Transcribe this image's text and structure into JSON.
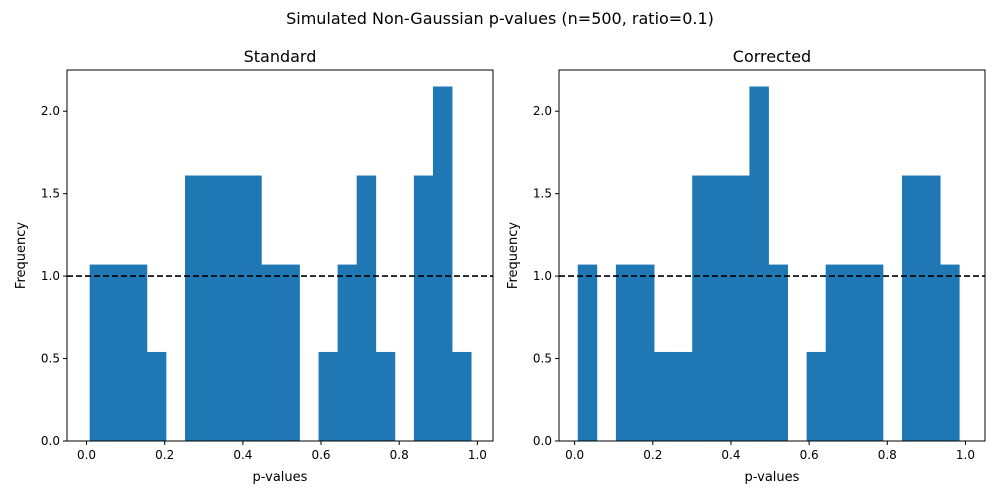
{
  "figure": {
    "suptitle": "Simulated Non-Gaussian p-values (n=500, ratio=0.1)"
  },
  "chart_data": [
    {
      "type": "bar",
      "title": "Standard",
      "xlabel": "p-values",
      "ylabel": "Frequency",
      "xlim": [
        -0.05,
        1.04
      ],
      "ylim": [
        0,
        2.25
      ],
      "xticks": [
        0.0,
        0.2,
        0.4,
        0.6,
        0.8,
        1.0
      ],
      "xtick_labels": [
        "0.0",
        "0.2",
        "0.4",
        "0.6",
        "0.8",
        "1.0"
      ],
      "yticks": [
        0.0,
        0.5,
        1.0,
        1.5,
        2.0
      ],
      "ytick_labels": [
        "0.0",
        "0.5",
        "1.0",
        "1.5",
        "2.0"
      ],
      "bin_start": 0.008,
      "bin_width": 0.0488,
      "values": [
        1.07,
        1.07,
        1.07,
        0.54,
        0,
        1.61,
        1.61,
        1.61,
        1.61,
        1.07,
        1.07,
        0,
        0.54,
        1.07,
        1.61,
        0.54,
        0,
        1.61,
        2.15,
        0.54
      ],
      "bar_color": "#1f77b4",
      "reference_line": {
        "y": 1.0,
        "style": "dashed",
        "color": "#000000"
      },
      "grid": false
    },
    {
      "type": "bar",
      "title": "Corrected",
      "xlabel": "p-values",
      "ylabel": "Frequency",
      "xlim": [
        -0.04,
        1.05
      ],
      "ylim": [
        0,
        2.25
      ],
      "xticks": [
        0.0,
        0.2,
        0.4,
        0.6,
        0.8,
        1.0
      ],
      "xtick_labels": [
        "0.0",
        "0.2",
        "0.4",
        "0.6",
        "0.8",
        "1.0"
      ],
      "yticks": [
        0.0,
        0.5,
        1.0,
        1.5,
        2.0
      ],
      "ytick_labels": [
        "0.0",
        "0.5",
        "1.0",
        "1.5",
        "2.0"
      ],
      "bin_start": 0.008,
      "bin_width": 0.0488,
      "values": [
        1.07,
        0,
        1.07,
        1.07,
        0.54,
        0.54,
        1.61,
        1.61,
        1.61,
        2.15,
        1.07,
        0,
        0.54,
        1.07,
        1.07,
        1.07,
        0,
        1.61,
        1.61,
        1.07
      ],
      "bar_color": "#1f77b4",
      "reference_line": {
        "y": 1.0,
        "style": "dashed",
        "color": "#000000"
      },
      "grid": false
    }
  ]
}
